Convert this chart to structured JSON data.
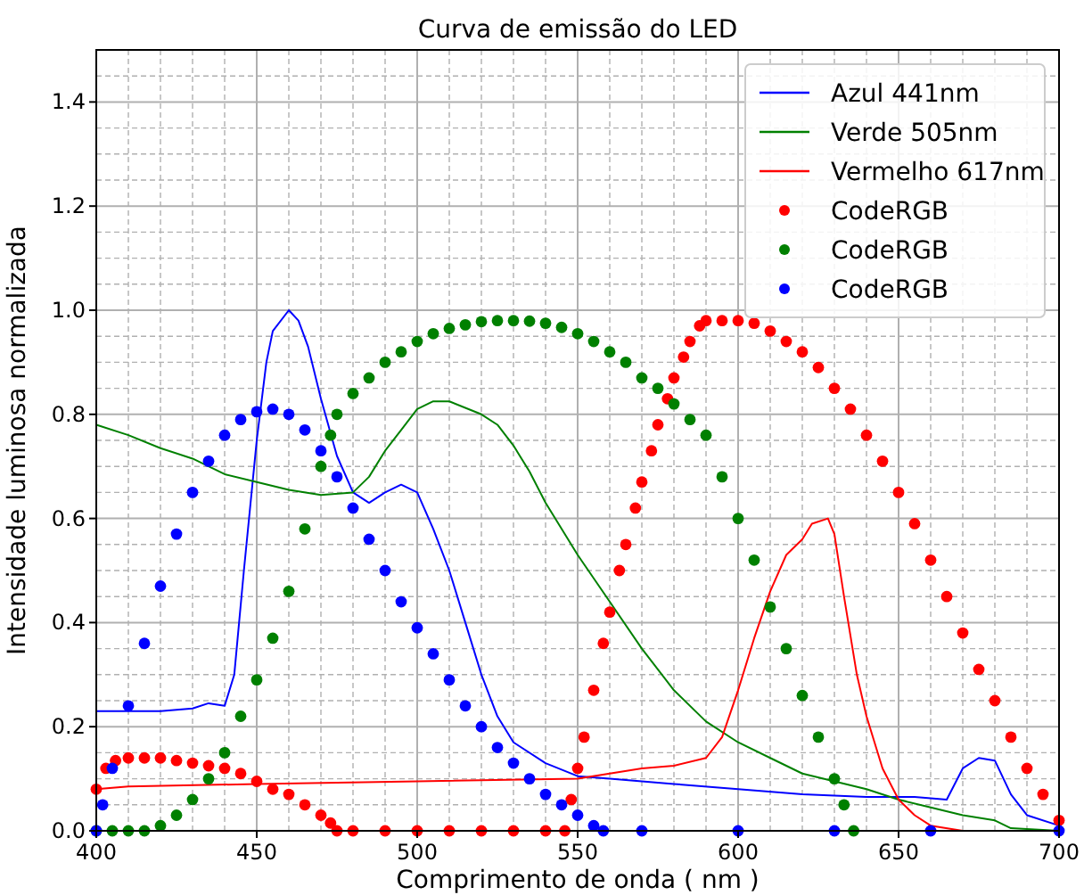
{
  "chart_data": {
    "type": "line",
    "title": "Curva de emissão do LED",
    "xlabel": "Comprimento de onda ( nm )",
    "ylabel": "Intensidade luminosa normalizada",
    "xlim": [
      400,
      700
    ],
    "ylim": [
      0,
      1.5
    ],
    "xticks": [
      400,
      450,
      500,
      550,
      600,
      650,
      700
    ],
    "yticks": [
      {
        "value": 0,
        "label": "0.0"
      },
      {
        "value": 0.2,
        "label": "0.2"
      },
      {
        "value": 0.4,
        "label": "0.4"
      },
      {
        "value": 0.6,
        "label": "0.6"
      },
      {
        "value": 0.8,
        "label": "0.8"
      },
      {
        "value": 1,
        "label": "1.0"
      },
      {
        "value": 1.2,
        "label": "1.2"
      },
      {
        "value": 1.4,
        "label": "1.4"
      }
    ],
    "grid": true,
    "legend": "top right",
    "series": [
      {
        "name": "Azul 441nm",
        "color": "#0000ff",
        "marker": "none",
        "x": [
          400,
          420,
          430,
          435,
          440,
          443,
          446,
          450,
          453,
          455,
          460,
          463,
          466,
          470,
          475,
          480,
          485,
          490,
          495,
          500,
          505,
          510,
          515,
          520,
          525,
          530,
          540,
          550,
          560,
          580,
          600,
          620,
          640,
          655,
          665,
          670,
          675,
          680,
          685,
          690,
          700
        ],
        "values": [
          0.23,
          0.23,
          0.235,
          0.245,
          0.24,
          0.3,
          0.5,
          0.75,
          0.9,
          0.96,
          1.0,
          0.98,
          0.93,
          0.83,
          0.72,
          0.65,
          0.63,
          0.65,
          0.665,
          0.65,
          0.58,
          0.5,
          0.4,
          0.3,
          0.22,
          0.17,
          0.13,
          0.105,
          0.1,
          0.09,
          0.08,
          0.07,
          0.065,
          0.065,
          0.06,
          0.12,
          0.14,
          0.135,
          0.07,
          0.03,
          0.01
        ]
      },
      {
        "name": "Verde 505nm",
        "color": "#008000",
        "marker": "none",
        "x": [
          400,
          410,
          420,
          430,
          440,
          450,
          460,
          470,
          480,
          485,
          490,
          495,
          500,
          505,
          510,
          520,
          525,
          530,
          535,
          540,
          545,
          550,
          560,
          570,
          580,
          590,
          600,
          610,
          620,
          630,
          640,
          650,
          660,
          670,
          680,
          685,
          700
        ],
        "values": [
          0.78,
          0.76,
          0.735,
          0.715,
          0.685,
          0.67,
          0.655,
          0.645,
          0.65,
          0.68,
          0.73,
          0.77,
          0.81,
          0.825,
          0.825,
          0.8,
          0.78,
          0.74,
          0.69,
          0.63,
          0.58,
          0.53,
          0.44,
          0.35,
          0.27,
          0.21,
          0.17,
          0.14,
          0.11,
          0.095,
          0.08,
          0.06,
          0.045,
          0.03,
          0.02,
          0.005,
          0.0
        ]
      },
      {
        "name": "Vermelho 617nm",
        "color": "#ff0000",
        "marker": "none",
        "x": [
          400,
          410,
          450,
          500,
          550,
          570,
          580,
          590,
          595,
          600,
          605,
          610,
          615,
          620,
          623,
          628,
          630,
          633,
          637,
          640,
          645,
          650,
          655,
          660,
          670,
          700
        ],
        "values": [
          0.08,
          0.085,
          0.09,
          0.095,
          0.1,
          0.12,
          0.125,
          0.14,
          0.18,
          0.27,
          0.37,
          0.46,
          0.53,
          0.56,
          0.59,
          0.6,
          0.57,
          0.45,
          0.3,
          0.22,
          0.12,
          0.06,
          0.03,
          0.01,
          0.0,
          0.0
        ]
      },
      {
        "name": "CodeRGB",
        "color": "#ff0000",
        "type": "scatter",
        "marker": "circle",
        "x": [
          400,
          403,
          406,
          410,
          415,
          420,
          425,
          430,
          435,
          440,
          445,
          450,
          455,
          460,
          465,
          470,
          473,
          475,
          480,
          490,
          500,
          510,
          520,
          530,
          540,
          546,
          548,
          550,
          552,
          555,
          558,
          560,
          563,
          565,
          568,
          570,
          573,
          575,
          578,
          580,
          583,
          585,
          588,
          590,
          595,
          600,
          605,
          610,
          615,
          620,
          625,
          630,
          635,
          640,
          645,
          650,
          655,
          660,
          665,
          670,
          675,
          680,
          685,
          690,
          695,
          700
        ],
        "values": [
          0.08,
          0.12,
          0.135,
          0.14,
          0.14,
          0.14,
          0.135,
          0.13,
          0.125,
          0.12,
          0.11,
          0.095,
          0.08,
          0.07,
          0.05,
          0.03,
          0.015,
          0.0,
          0.0,
          0.0,
          0.0,
          0.0,
          0.0,
          0.0,
          0.0,
          0.0,
          0.06,
          0.12,
          0.18,
          0.27,
          0.36,
          0.42,
          0.5,
          0.55,
          0.62,
          0.67,
          0.73,
          0.78,
          0.83,
          0.87,
          0.91,
          0.94,
          0.97,
          0.98,
          0.98,
          0.98,
          0.975,
          0.96,
          0.94,
          0.92,
          0.89,
          0.85,
          0.81,
          0.76,
          0.71,
          0.65,
          0.59,
          0.52,
          0.45,
          0.38,
          0.31,
          0.25,
          0.18,
          0.12,
          0.07,
          0.02
        ]
      },
      {
        "name": "CodeRGB",
        "color": "#008000",
        "type": "scatter",
        "marker": "circle",
        "x": [
          400,
          405,
          410,
          415,
          420,
          425,
          430,
          435,
          440,
          445,
          450,
          455,
          460,
          465,
          470,
          473,
          475,
          480,
          485,
          490,
          495,
          500,
          505,
          510,
          515,
          520,
          525,
          530,
          535,
          540,
          545,
          550,
          555,
          560,
          565,
          570,
          575,
          580,
          585,
          590,
          595,
          600,
          605,
          610,
          615,
          620,
          625,
          630,
          633,
          636
        ],
        "values": [
          0.0,
          0.0,
          0.0,
          0.0,
          0.01,
          0.03,
          0.06,
          0.1,
          0.15,
          0.22,
          0.29,
          0.37,
          0.46,
          0.58,
          0.7,
          0.76,
          0.8,
          0.84,
          0.87,
          0.9,
          0.92,
          0.94,
          0.955,
          0.965,
          0.972,
          0.978,
          0.98,
          0.98,
          0.979,
          0.975,
          0.967,
          0.955,
          0.94,
          0.92,
          0.9,
          0.87,
          0.85,
          0.82,
          0.79,
          0.76,
          0.68,
          0.6,
          0.52,
          0.43,
          0.35,
          0.26,
          0.18,
          0.1,
          0.05,
          0.0
        ]
      },
      {
        "name": "CodeRGB",
        "color": "#0000ff",
        "type": "scatter",
        "marker": "circle",
        "x": [
          400,
          402,
          405,
          410,
          415,
          420,
          425,
          430,
          435,
          440,
          445,
          450,
          455,
          460,
          465,
          470,
          475,
          480,
          485,
          490,
          495,
          500,
          505,
          510,
          515,
          520,
          525,
          530,
          535,
          540,
          545,
          550,
          555,
          558,
          570,
          600,
          630,
          660,
          700
        ],
        "values": [
          0.0,
          0.05,
          0.12,
          0.24,
          0.36,
          0.47,
          0.57,
          0.65,
          0.71,
          0.76,
          0.79,
          0.805,
          0.81,
          0.8,
          0.77,
          0.73,
          0.68,
          0.62,
          0.56,
          0.5,
          0.44,
          0.39,
          0.34,
          0.29,
          0.24,
          0.2,
          0.16,
          0.13,
          0.1,
          0.07,
          0.05,
          0.03,
          0.01,
          0.0,
          0.0,
          0.0,
          0.0,
          0.0,
          0.0
        ]
      }
    ]
  }
}
